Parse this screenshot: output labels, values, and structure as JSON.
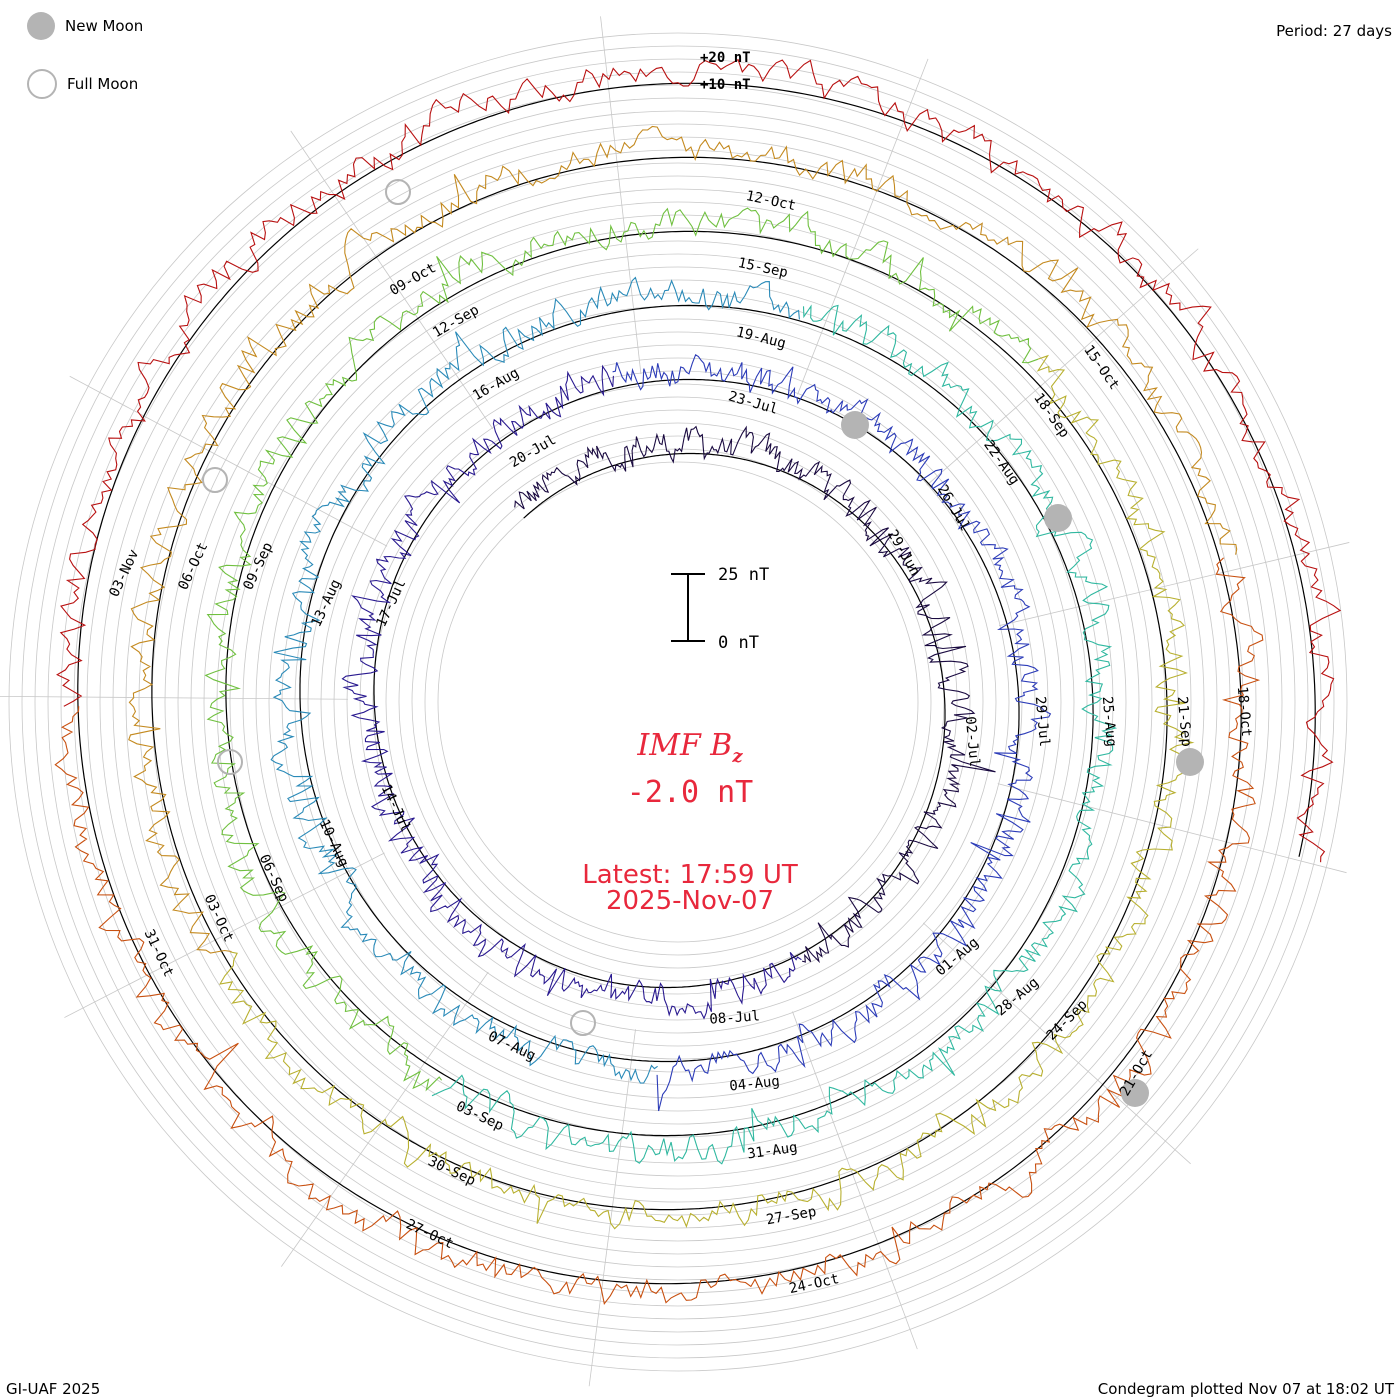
{
  "legend": {
    "new_moon": "New Moon",
    "full_moon": "Full Moon"
  },
  "header": {
    "period": "Period: 27 days"
  },
  "footer": {
    "credit": "GI-UAF 2025",
    "plotted": "Condegram plotted Nov 07 at 18:02 UT"
  },
  "scale_bar": {
    "top_label": "25 nT",
    "bottom_label": "0 nT"
  },
  "center": {
    "title_main": "IMF B",
    "title_sub": "z",
    "value": "-2.0 nT",
    "latest": "Latest: 17:59 UT",
    "date": "2025-Nov-07"
  },
  "chart_data": {
    "type": "line",
    "title": "IMF Bz condegram",
    "period_days": 27,
    "units": "nT",
    "ring_labels": [
      "+20 nT",
      "+10 nT"
    ],
    "colors": [
      "#1a0a40",
      "#2a1a90",
      "#2c3cb8",
      "#2a8ab8",
      "#30b8a0",
      "#70c040",
      "#b8b030",
      "#c48a20",
      "#c85010",
      "#b81010"
    ],
    "moon_colors": {
      "new": "#b4b4b4",
      "full": "#b4b4b4"
    },
    "date_labels": [
      "12-Oct",
      "15-Sep",
      "19-Aug",
      "23-Jul",
      "15-Oct",
      "18-Sep",
      "22-Aug",
      "26-Jul",
      "29-Jun",
      "18-Oct",
      "21-Sep",
      "25-Aug",
      "29-Jul",
      "02-Jul",
      "21-Oct",
      "24-Sep",
      "28-Aug",
      "01-Aug",
      "24-Oct",
      "27-Sep",
      "31-Aug",
      "04-Aug",
      "08-Jul",
      "27-Oct",
      "30-Sep",
      "03-Sep",
      "07-Aug",
      "31-Oct",
      "03-Oct",
      "06-Sep",
      "10-Aug",
      "14-Jul",
      "03-Nov",
      "06-Oct",
      "09-Sep",
      "13-Aug",
      "17-Jul",
      "09-Oct",
      "12-Sep",
      "16-Aug",
      "20-Jul"
    ]
  }
}
